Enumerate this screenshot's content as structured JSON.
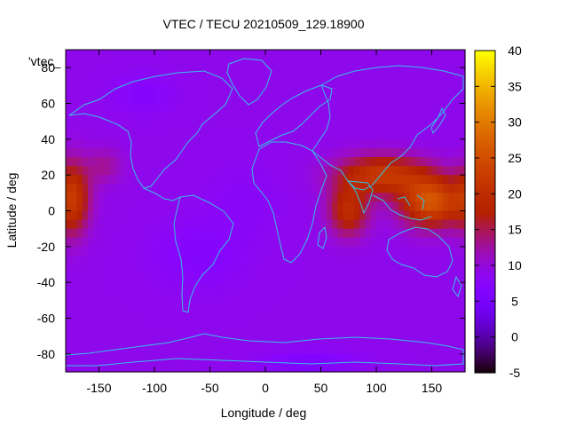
{
  "chart_data": {
    "type": "heatmap",
    "title": "VTEC / TECU 20210509_129.18900",
    "xlabel": "Longitude / deg",
    "ylabel": "Latitude / deg",
    "series_key": "'vtec_",
    "xlim": [
      -180,
      180
    ],
    "ylim": [
      -90,
      90
    ],
    "xticks": [
      -150,
      -100,
      -50,
      0,
      50,
      100,
      150
    ],
    "yticks": [
      -80,
      -60,
      -40,
      -20,
      0,
      20,
      40,
      60,
      80
    ],
    "colorbar": {
      "range": [
        -5,
        40
      ],
      "ticks": [
        -5,
        0,
        5,
        10,
        15,
        20,
        25,
        30,
        35,
        40
      ]
    },
    "grid_step_deg": 5,
    "base_value_tecu": 9,
    "hotspots": [
      {
        "lon": 105,
        "lat": 20,
        "lon_radius": 40,
        "lat_radius": 11,
        "peak_tecu": 13
      },
      {
        "lon": 150,
        "lat": 5,
        "lon_radius": 28,
        "lat_radius": 14,
        "peak_tecu": 17
      },
      {
        "lon": 75,
        "lat": 0,
        "lon_radius": 18,
        "lat_radius": 14,
        "peak_tecu": 11
      },
      {
        "lon": -175,
        "lat": 7,
        "lon_radius": 16,
        "lat_radius": 20,
        "peak_tecu": 14
      },
      {
        "lon": 180,
        "lat": 7,
        "lon_radius": 10,
        "lat_radius": 18,
        "peak_tecu": 8
      },
      {
        "lon": -145,
        "lat": 25,
        "lon_radius": 16,
        "lat_radius": 10,
        "peak_tecu": 4
      },
      {
        "lon": -60,
        "lat": -25,
        "lon_radius": 40,
        "lat_radius": 18,
        "peak_tecu": -2
      },
      {
        "lon": -20,
        "lat": 5,
        "lon_radius": 35,
        "lat_radius": 20,
        "peak_tecu": -1
      },
      {
        "lon": -110,
        "lat": 65,
        "lon_radius": 25,
        "lat_radius": 10,
        "peak_tecu": -2
      },
      {
        "lon": 40,
        "lat": -85,
        "lon_radius": 40,
        "lat_radius": 6,
        "peak_tecu": -3
      }
    ]
  },
  "colors": {
    "coastline": "#33c1e6",
    "background": "#ffffff"
  }
}
